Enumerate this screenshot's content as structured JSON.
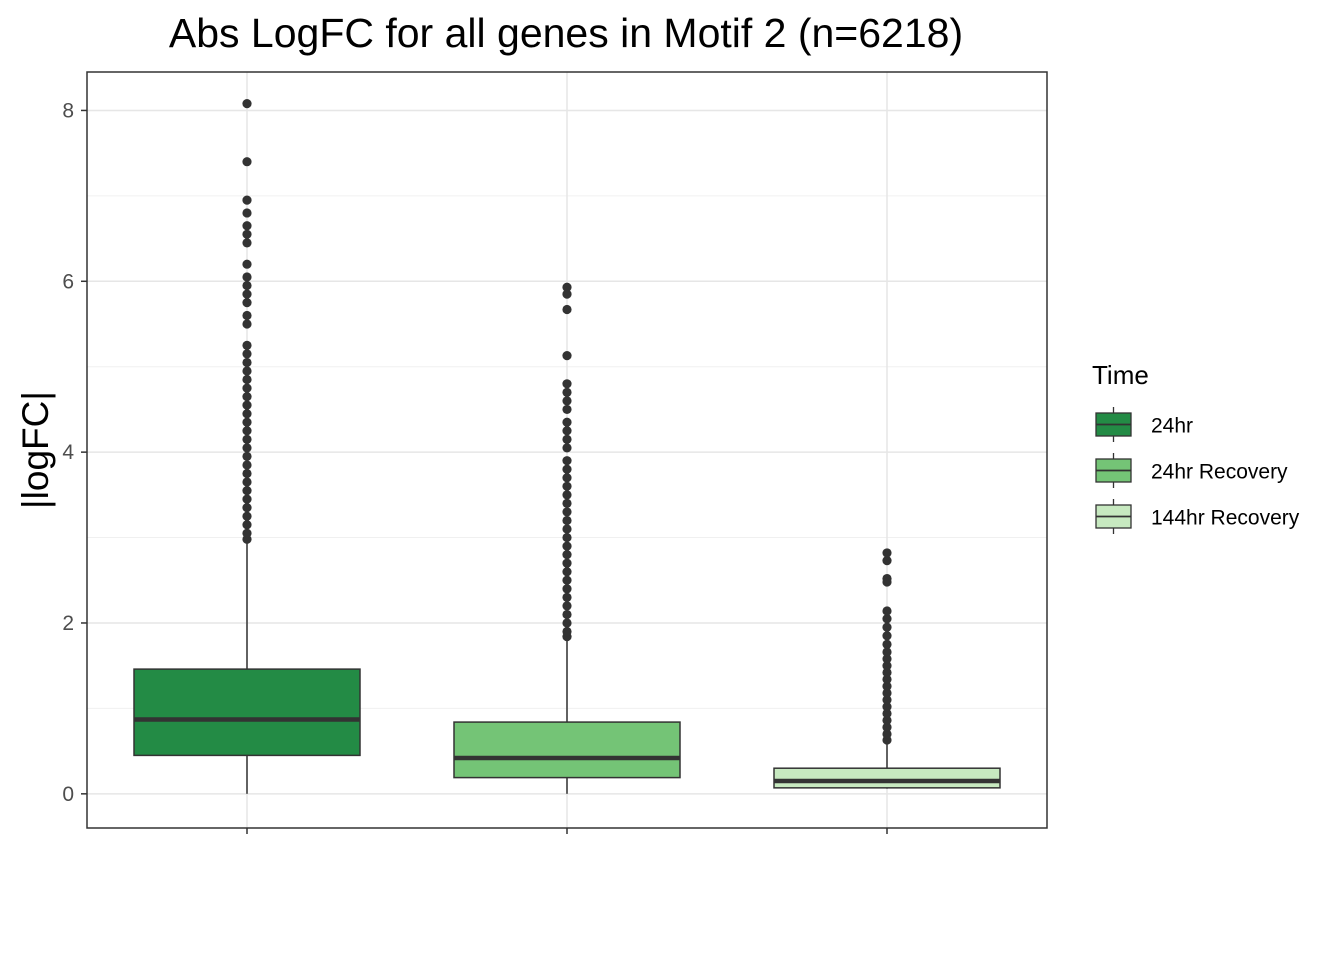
{
  "chart_data": {
    "type": "boxplot",
    "title": "Abs LogFC for all genes in Motif 2 (n=6218)",
    "xlabel": "",
    "ylabel": "|logFC|",
    "ylim": [
      -0.4,
      8.45
    ],
    "y_ticks": [
      {
        "value": 0,
        "label": "0"
      },
      {
        "value": 2,
        "label": "2"
      },
      {
        "value": 4,
        "label": "4"
      },
      {
        "value": 6,
        "label": "6"
      },
      {
        "value": 8,
        "label": "8"
      }
    ],
    "y_minor_gridlines": [
      1,
      3,
      5,
      7
    ],
    "grid": true,
    "legend": {
      "title": "Time",
      "placement": "right"
    },
    "series": [
      {
        "name": "24hr",
        "color": "#238b45",
        "min": 0.0,
        "q1": 0.45,
        "median": 0.87,
        "q3": 1.46,
        "whisker_low": 0.0,
        "whisker_high": 2.98,
        "outliers": [
          2.98,
          3.05,
          3.15,
          3.25,
          3.35,
          3.45,
          3.55,
          3.65,
          3.75,
          3.85,
          3.95,
          4.05,
          4.15,
          4.25,
          4.35,
          4.45,
          4.55,
          4.65,
          4.75,
          4.85,
          4.95,
          5.05,
          5.15,
          5.25,
          5.5,
          5.6,
          5.75,
          5.85,
          5.95,
          6.05,
          6.2,
          6.45,
          6.55,
          6.65,
          6.8,
          6.95,
          7.4,
          8.08
        ]
      },
      {
        "name": "24hr Recovery",
        "color": "#74c476",
        "min": 0.0,
        "q1": 0.19,
        "median": 0.42,
        "q3": 0.84,
        "whisker_low": 0.0,
        "whisker_high": 1.84,
        "outliers": [
          1.84,
          1.9,
          2.0,
          2.1,
          2.2,
          2.3,
          2.4,
          2.5,
          2.6,
          2.7,
          2.8,
          2.9,
          3.0,
          3.1,
          3.2,
          3.3,
          3.4,
          3.5,
          3.6,
          3.7,
          3.8,
          3.9,
          4.05,
          4.15,
          4.25,
          4.35,
          4.5,
          4.6,
          4.7,
          4.8,
          5.13,
          5.67,
          5.85,
          5.93
        ]
      },
      {
        "name": "144hr Recovery",
        "color": "#c7e9c0",
        "min": 0.06,
        "q1": 0.07,
        "median": 0.15,
        "q3": 0.3,
        "whisker_low": 0.06,
        "whisker_high": 0.63,
        "outliers": [
          0.63,
          0.7,
          0.78,
          0.86,
          0.94,
          1.02,
          1.1,
          1.18,
          1.26,
          1.34,
          1.42,
          1.5,
          1.58,
          1.66,
          1.75,
          1.85,
          1.95,
          2.05,
          2.14,
          2.48,
          2.52,
          2.73,
          2.82
        ]
      }
    ]
  }
}
